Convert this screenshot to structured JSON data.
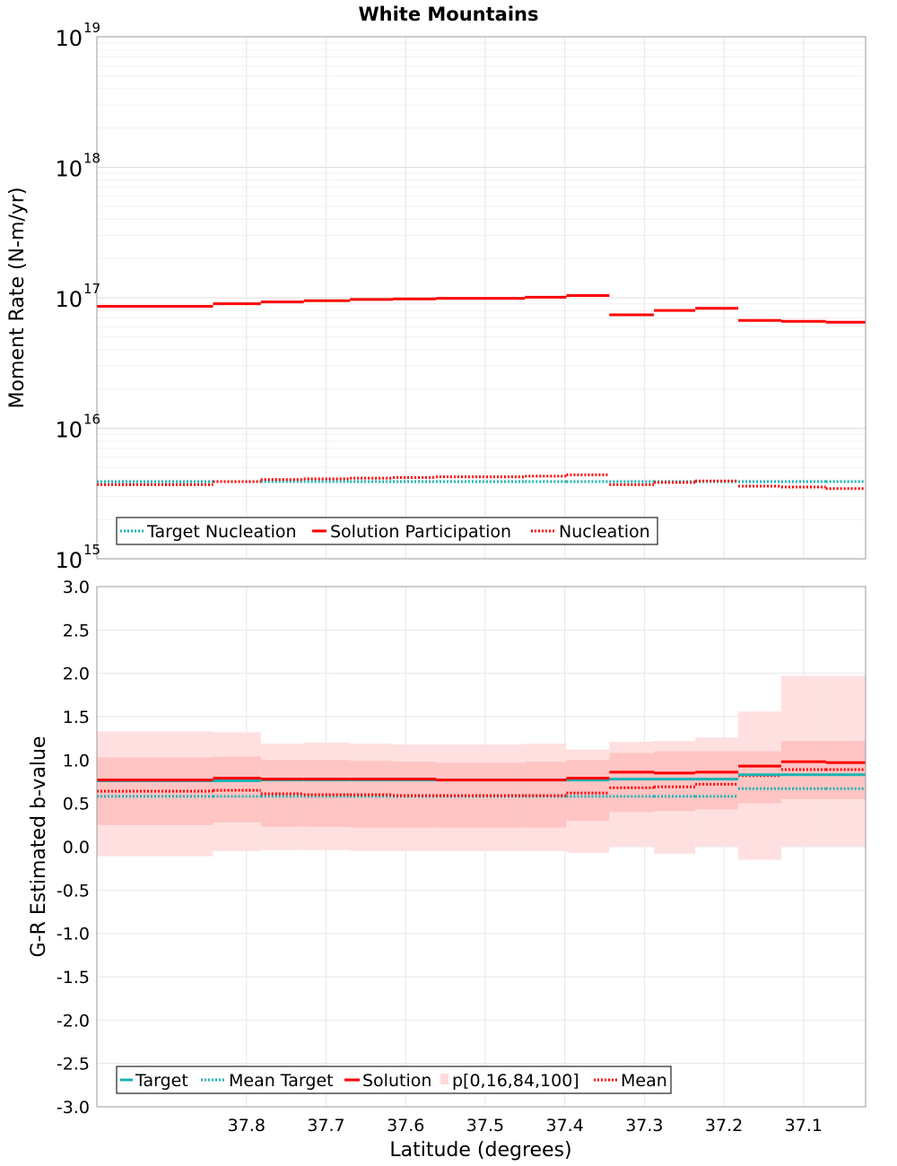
{
  "title": "White Mountains",
  "xlabel": "Latitude (degrees)",
  "xticks": [
    "37.8",
    "37.7",
    "37.6",
    "37.5",
    "37.4",
    "37.3",
    "37.2",
    "37.1"
  ],
  "colors": {
    "target": "#1ab3b3",
    "solution": "#ff0000",
    "band_outer": "#ffe0e0",
    "band_inner": "#ffc4c4"
  },
  "chart_data": [
    {
      "type": "line",
      "title": "White Mountains",
      "xlabel": "Latitude (degrees)",
      "ylabel": "Moment Rate (N-m/yr)",
      "yscale": "log",
      "xlim": [
        37.988,
        37.022
      ],
      "ylim": [
        1000000000000000.0,
        1e+19
      ],
      "grid": true,
      "legend_position": "bottom-left",
      "yticks": [
        {
          "base": "10",
          "exp": "15",
          "value": 1000000000000000.0
        },
        {
          "base": "10",
          "exp": "16",
          "value": 1e+16
        },
        {
          "base": "10",
          "exp": "17",
          "value": 1e+17
        },
        {
          "base": "10",
          "exp": "18",
          "value": 1e+18
        },
        {
          "base": "10",
          "exp": "19",
          "value": 1e+19
        }
      ],
      "bin_edges": [
        37.988,
        37.842,
        37.782,
        37.728,
        37.67,
        37.616,
        37.562,
        37.45,
        37.398,
        37.344,
        37.288,
        37.236,
        37.182,
        37.128,
        37.072,
        37.022
      ],
      "series": [
        {
          "name": "Target Nucleation",
          "style": "dotted",
          "color": "#1ab3b3",
          "values": [
            3900000000000000.0,
            3900000000000000.0,
            3900000000000000.0,
            3900000000000000.0,
            3900000000000000.0,
            3900000000000000.0,
            3900000000000000.0,
            3900000000000000.0,
            3900000000000000.0,
            3900000000000000.0,
            3900000000000000.0,
            3900000000000000.0,
            3900000000000000.0,
            3900000000000000.0,
            3900000000000000.0
          ]
        },
        {
          "name": "Solution Participation",
          "style": "solid",
          "color": "#ff0000",
          "values": [
            8.6e+16,
            9e+16,
            9.3e+16,
            9.5e+16,
            9.7e+16,
            9.8e+16,
            9.9e+16,
            1.01e+17,
            1.04e+17,
            7.4e+16,
            8e+16,
            8.3e+16,
            6.7e+16,
            6.6e+16,
            6.5e+16
          ]
        },
        {
          "name": "Nucleation",
          "style": "dotted",
          "color": "#ff0000",
          "values": [
            3700000000000000.0,
            3900000000000000.0,
            4050000000000000.0,
            4100000000000000.0,
            4150000000000000.0,
            4200000000000000.0,
            4250000000000000.0,
            4300000000000000.0,
            4400000000000000.0,
            3700000000000000.0,
            3850000000000000.0,
            3950000000000000.0,
            3600000000000000.0,
            3550000000000000.0,
            3450000000000000.0
          ]
        }
      ]
    },
    {
      "type": "line",
      "xlabel": "Latitude (degrees)",
      "ylabel": "G-R Estimated b-value",
      "xlim": [
        37.988,
        37.022
      ],
      "ylim": [
        -3.0,
        3.0
      ],
      "grid": true,
      "legend_position": "bottom-left",
      "yticks": [
        "3.0",
        "2.5",
        "2.0",
        "1.5",
        "1.0",
        "0.5",
        "0.0",
        "-0.5",
        "-1.0",
        "-1.5",
        "-2.0",
        "-2.5",
        "-3.0"
      ],
      "bin_edges": [
        37.988,
        37.842,
        37.782,
        37.728,
        37.67,
        37.616,
        37.562,
        37.45,
        37.398,
        37.344,
        37.288,
        37.236,
        37.182,
        37.128,
        37.072,
        37.022
      ],
      "bands": {
        "name": "p[0,16,84,100]",
        "p0": [
          -0.11,
          -0.05,
          -0.04,
          -0.04,
          -0.05,
          -0.05,
          -0.05,
          -0.05,
          -0.07,
          0.0,
          -0.08,
          0.0,
          -0.15,
          0.0,
          0.0
        ],
        "p16": [
          0.25,
          0.28,
          0.23,
          0.23,
          0.22,
          0.22,
          0.22,
          0.22,
          0.3,
          0.4,
          0.41,
          0.43,
          0.5,
          0.55,
          0.55
        ],
        "p84": [
          1.03,
          1.04,
          1.0,
          1.0,
          0.99,
          0.98,
          0.97,
          0.98,
          1.0,
          1.08,
          1.1,
          1.1,
          1.1,
          1.22,
          1.22
        ],
        "p100": [
          1.33,
          1.32,
          1.19,
          1.2,
          1.19,
          1.18,
          1.18,
          1.19,
          1.12,
          1.21,
          1.22,
          1.26,
          1.56,
          1.97,
          1.97
        ]
      },
      "series": [
        {
          "name": "Target",
          "style": "solid",
          "color": "#1ab3b3",
          "values": [
            0.76,
            0.76,
            0.77,
            0.77,
            0.77,
            0.77,
            0.77,
            0.77,
            0.77,
            0.78,
            0.78,
            0.78,
            0.83,
            0.83,
            0.83
          ]
        },
        {
          "name": "Mean Target",
          "style": "dotted",
          "color": "#1ab3b3",
          "values": [
            0.58,
            0.58,
            0.58,
            0.58,
            0.58,
            0.58,
            0.58,
            0.58,
            0.58,
            0.58,
            0.58,
            0.58,
            0.67,
            0.67,
            0.67
          ]
        },
        {
          "name": "Solution",
          "style": "solid",
          "color": "#ff0000",
          "values": [
            0.77,
            0.79,
            0.78,
            0.78,
            0.78,
            0.78,
            0.77,
            0.77,
            0.79,
            0.86,
            0.85,
            0.86,
            0.93,
            0.98,
            0.97
          ]
        },
        {
          "name": "Mean",
          "style": "dotted",
          "color": "#ff0000",
          "values": [
            0.64,
            0.65,
            0.61,
            0.6,
            0.6,
            0.59,
            0.59,
            0.59,
            0.62,
            0.68,
            0.69,
            0.72,
            0.82,
            0.89,
            0.89
          ]
        }
      ],
      "legend_order": [
        "Target",
        "Mean Target",
        "Solution",
        "p[0,16,84,100]",
        "Mean"
      ]
    }
  ]
}
